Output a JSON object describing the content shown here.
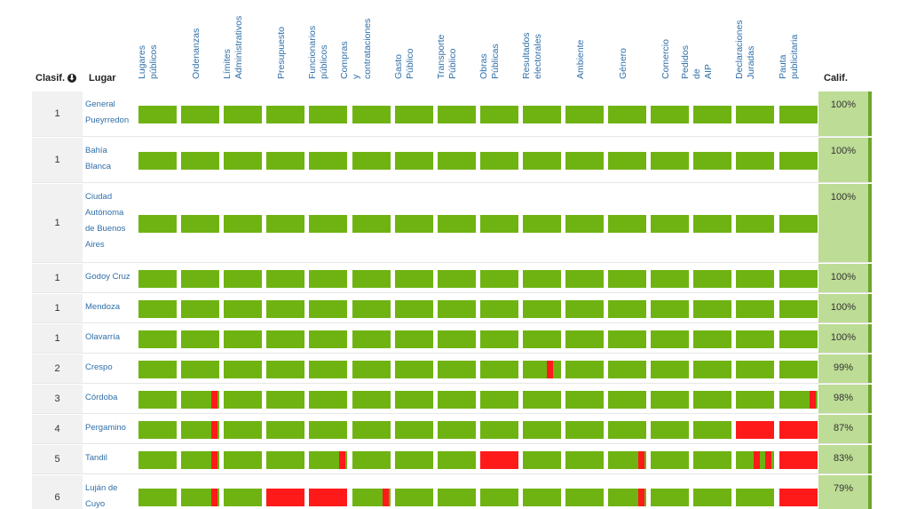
{
  "headers": {
    "rank": "Clasif.",
    "place": "Lugar",
    "score": "Calif."
  },
  "columns": [
    [
      "Lugares",
      "públicos"
    ],
    [
      "Ordenanzas"
    ],
    [
      "Límites",
      "Administrativos"
    ],
    [
      "Presupuesto"
    ],
    [
      "Funcionarios",
      "públicos"
    ],
    [
      "Compras",
      "y",
      "contrataciones"
    ],
    [
      "Gasto",
      "Público"
    ],
    [
      "Transporte",
      "Público"
    ],
    [
      "Obras",
      "Públicas"
    ],
    [
      "Resultados",
      "electorales"
    ],
    [
      "Ambiente"
    ],
    [
      "Género"
    ],
    [
      "Comercio"
    ],
    [
      "Pedidos",
      "de",
      "AIP"
    ],
    [
      "Declaraciones",
      "Juradas"
    ],
    [
      "Pauta",
      "publicitaria"
    ]
  ],
  "colors": {
    "green": "#6fb312",
    "red": "#ff1a1a",
    "score_bg": "#bddc95"
  },
  "rows": [
    {
      "rank": "1",
      "place": [
        "General",
        "Pueyrredon"
      ],
      "score": "100%",
      "cells": [
        "g",
        "g",
        "g",
        "g",
        "g",
        "g",
        "g",
        "g",
        "g",
        "g",
        "g",
        "g",
        "g",
        "g",
        "g",
        "g"
      ]
    },
    {
      "rank": "1",
      "place": [
        "Bahía",
        "Blanca"
      ],
      "score": "100%",
      "cells": [
        "g",
        "g",
        "g",
        "g",
        "g",
        "g",
        "g",
        "g",
        "g",
        "g",
        "g",
        "g",
        "g",
        "g",
        "g",
        "g"
      ]
    },
    {
      "rank": "1",
      "place": [
        "Ciudad",
        "Autónoma",
        "de Buenos",
        "Aires"
      ],
      "score": "100%",
      "cells": [
        "g",
        "g",
        "g",
        "g",
        "g",
        "g",
        "g",
        "g",
        "g",
        "g",
        "g",
        "g",
        "g",
        "g",
        "g",
        "g"
      ]
    },
    {
      "rank": "1",
      "place": [
        "Godoy Cruz"
      ],
      "score": "100%",
      "cells": [
        "g",
        "g",
        "g",
        "g",
        "g",
        "g",
        "g",
        "g",
        "g",
        "g",
        "g",
        "g",
        "g",
        "g",
        "g",
        "g"
      ]
    },
    {
      "rank": "1",
      "place": [
        "Mendoza"
      ],
      "score": "100%",
      "cells": [
        "g",
        "g",
        "g",
        "g",
        "g",
        "g",
        "g",
        "g",
        "g",
        "g",
        "g",
        "g",
        "g",
        "g",
        "g",
        "g"
      ]
    },
    {
      "rank": "1",
      "place": [
        "Olavarría"
      ],
      "score": "100%",
      "cells": [
        "g",
        "g",
        "g",
        "g",
        "g",
        "g",
        "g",
        "g",
        "g",
        "g",
        "g",
        "g",
        "g",
        "g",
        "g",
        "g"
      ]
    },
    {
      "rank": "2",
      "place": [
        "Crespo"
      ],
      "score": "99%",
      "cells": [
        "g",
        "g",
        "g",
        "g",
        "g",
        "g",
        "g",
        "g",
        "g",
        "m",
        "g",
        "g",
        "g",
        "g",
        "g",
        "g"
      ]
    },
    {
      "rank": "3",
      "place": [
        "Córdoba"
      ],
      "score": "98%",
      "cells": [
        "g",
        "r",
        "g",
        "g",
        "g",
        "g",
        "g",
        "g",
        "g",
        "g",
        "g",
        "g",
        "g",
        "g",
        "g",
        "r"
      ]
    },
    {
      "rank": "4",
      "place": [
        "Pergamino"
      ],
      "score": "87%",
      "cells": [
        "g",
        "r",
        "g",
        "g",
        "g",
        "g",
        "g",
        "g",
        "g",
        "g",
        "g",
        "g",
        "g",
        "g",
        "R",
        "R"
      ]
    },
    {
      "rank": "5",
      "place": [
        "Tandil"
      ],
      "score": "83%",
      "cells": [
        "g",
        "r",
        "g",
        "g",
        "r",
        "g",
        "g",
        "g",
        "R",
        "g",
        "g",
        "r",
        "g",
        "g",
        "rr",
        "R"
      ]
    },
    {
      "rank": "6",
      "place": [
        "Luján de",
        "Cuyo"
      ],
      "score": "79%",
      "cells": [
        "g",
        "r",
        "g",
        "R",
        "R",
        "r",
        "g",
        "g",
        "g",
        "g",
        "g",
        "r",
        "g",
        "g",
        "g",
        "R"
      ]
    }
  ]
}
